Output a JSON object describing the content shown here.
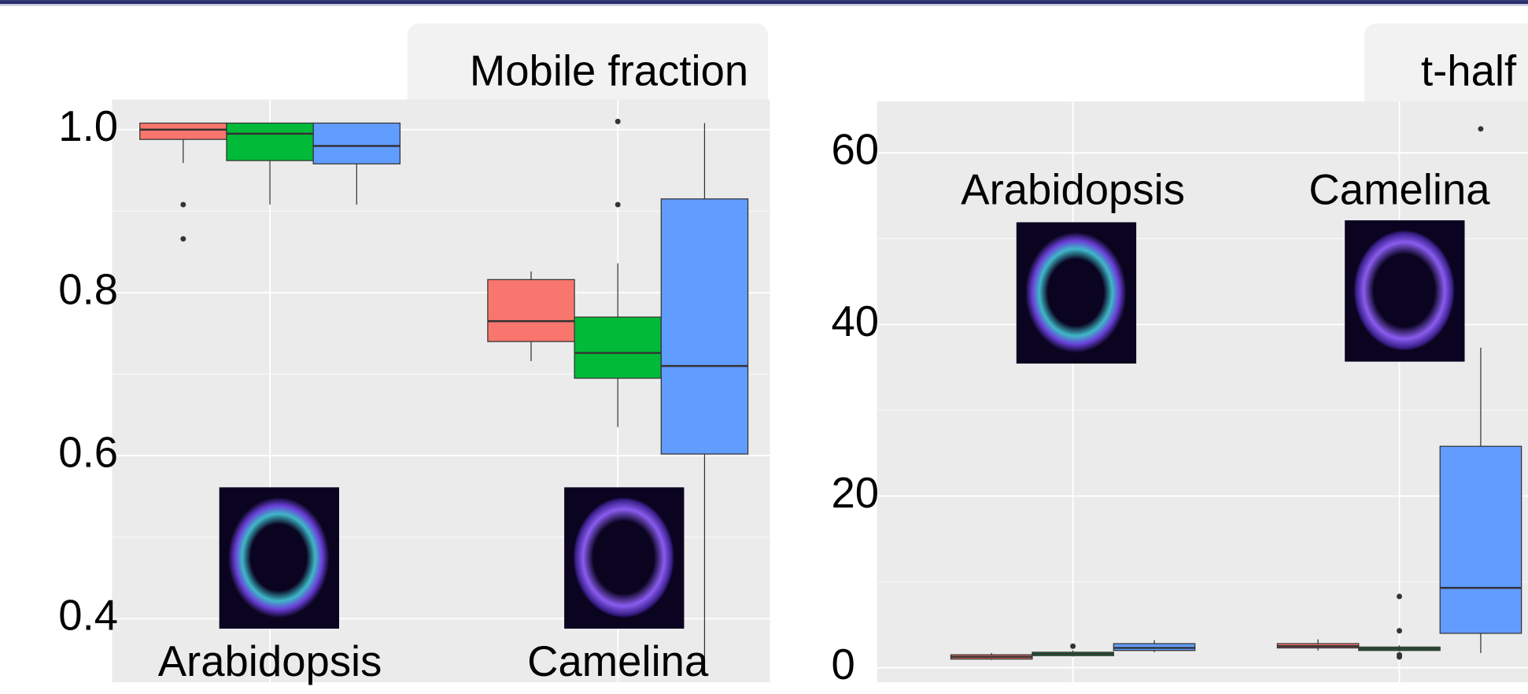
{
  "chart_data": [
    {
      "type": "box",
      "title": "Mobile fraction",
      "categories": [
        "Arabidopsis",
        "Camelina"
      ],
      "ylim": [
        0.322,
        1.037
      ],
      "yticks": [
        {
          "value": 0.4,
          "label": "0.4"
        },
        {
          "value": 0.6,
          "label": "0.6"
        },
        {
          "value": 0.8,
          "label": "0.8"
        },
        {
          "value": 1.0,
          "label": "1.0"
        }
      ],
      "yminor_ticks": [
        0.5,
        0.7,
        0.9
      ],
      "grid": true,
      "series": [
        {
          "color": "#f8766d",
          "values": [
            {
              "whisker_low": 0.959,
              "q1": 0.988,
              "median": 1.0,
              "q3": 1.008,
              "whisker_high": 1.008,
              "outliers": [
                0.908,
                0.866
              ]
            },
            {
              "whisker_low": 0.716,
              "q1": 0.74,
              "median": 0.765,
              "q3": 0.816,
              "whisker_high": 0.826,
              "outliers": []
            }
          ]
        },
        {
          "color": "#00ba38",
          "values": [
            {
              "whisker_low": 0.908,
              "q1": 0.962,
              "median": 0.995,
              "q3": 1.008,
              "whisker_high": 1.008,
              "outliers": []
            },
            {
              "whisker_low": 0.635,
              "q1": 0.695,
              "median": 0.726,
              "q3": 0.77,
              "whisker_high": 0.836,
              "outliers": [
                1.01,
                0.908
              ]
            }
          ]
        },
        {
          "color": "#619cff",
          "values": [
            {
              "whisker_low": 0.908,
              "q1": 0.958,
              "median": 0.98,
              "q3": 1.008,
              "whisker_high": 1.008,
              "outliers": []
            },
            {
              "whisker_low": 0.33,
              "q1": 0.602,
              "median": 0.71,
              "q3": 0.915,
              "whisker_high": 1.008,
              "outliers": []
            }
          ]
        }
      ]
    },
    {
      "type": "box",
      "title": "t-half",
      "categories": [
        "Arabidopsis",
        "Camelina"
      ],
      "ylim": [
        -1.7,
        66
      ],
      "yticks": [
        0,
        20,
        40,
        60
      ],
      "yminor_ticks": [
        10,
        30,
        50
      ],
      "grid": true,
      "series": [
        {
          "color": "#f8766d",
          "values": [
            {
              "whisker_low": 0.9,
              "q1": 1.0,
              "median": 1.25,
              "q3": 1.5,
              "whisker_high": 1.7,
              "outliers": []
            },
            {
              "whisker_low": 2.0,
              "q1": 2.3,
              "median": 2.5,
              "q3": 2.8,
              "whisker_high": 3.3,
              "outliers": []
            }
          ]
        },
        {
          "color": "#00ba38",
          "values": [
            {
              "whisker_low": 1.3,
              "q1": 1.4,
              "median": 1.6,
              "q3": 1.8,
              "whisker_high": 2.0,
              "outliers": [
                2.5
              ]
            },
            {
              "whisker_low": 1.9,
              "q1": 2.0,
              "median": 2.2,
              "q3": 2.4,
              "whisker_high": 2.6,
              "outliers": [
                8.3,
                4.3,
                1.5,
                1.25
              ]
            }
          ]
        },
        {
          "color": "#619cff",
          "values": [
            {
              "whisker_low": 1.8,
              "q1": 2.0,
              "median": 2.3,
              "q3": 2.8,
              "whisker_high": 3.2,
              "outliers": []
            },
            {
              "whisker_low": 1.7,
              "q1": 4.0,
              "median": 9.3,
              "q3": 25.8,
              "whisker_high": 37.3,
              "outliers": [
                62.8
              ]
            }
          ]
        }
      ]
    }
  ]
}
